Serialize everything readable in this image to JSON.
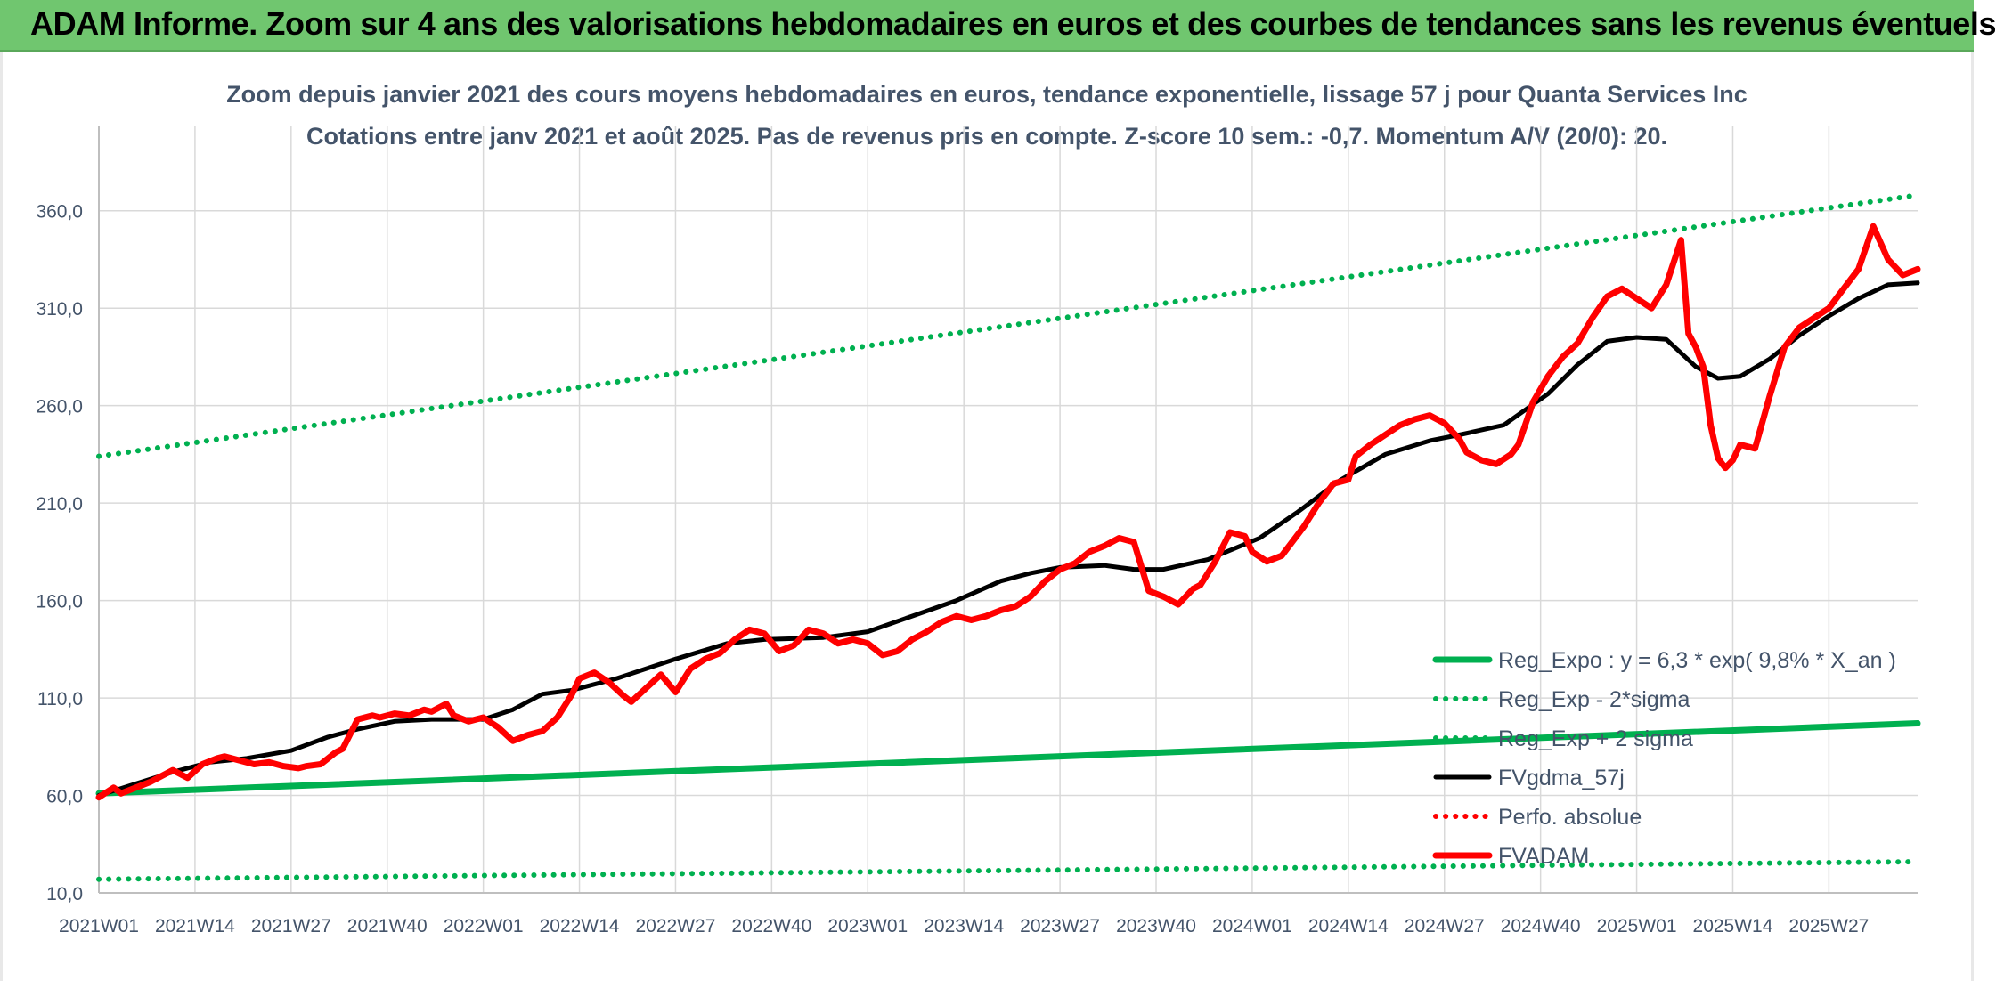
{
  "header": {
    "title": "ADAM Informe. Zoom sur 4 ans des valorisations hebdomadaires en euros et des courbes de tendances sans les revenus éventuels"
  },
  "chart_data": {
    "type": "line",
    "title_line1": "Zoom depuis janvier 2021 des cours moyens hebdomadaires en euros, tendance exponentielle, lissage 57 j pour Quanta Services Inc",
    "title_line2": "Cotations entre janv 2021 et août 2025. Pas de revenus pris en compte. Z-score 10 sem.: -0,7. Momentum A/V (20/0): 20.",
    "x_tick_labels": [
      "2021W01",
      "2021W14",
      "2021W27",
      "2021W40",
      "2022W01",
      "2022W14",
      "2022W27",
      "2022W40",
      "2023W01",
      "2023W14",
      "2023W27",
      "2023W40",
      "2024W01",
      "2024W14",
      "2024W27",
      "2024W40",
      "2025W01",
      "2025W14",
      "2025W27"
    ],
    "y_ticks": [
      10,
      60,
      110,
      160,
      210,
      260,
      310,
      360
    ],
    "y_tick_labels": [
      "10,0",
      "60,0",
      "110,0",
      "160,0",
      "210,0",
      "260,0",
      "310,0",
      "360,0"
    ],
    "ylim": [
      10,
      385
    ],
    "xlim_weeks": [
      0,
      246
    ],
    "grid": true,
    "legend_position": "bottom-right",
    "colors": {
      "green": "#00b050",
      "black": "#000000",
      "red": "#ff0000",
      "grid": "#d9d9d9",
      "tick_text": "#44546a"
    },
    "series": [
      {
        "name": "Reg_Expo : y = 6,3 * exp( 9,8% *  X_an )",
        "style": "solid",
        "color": "#00b050",
        "x": [
          0,
          246
        ],
        "y": [
          61,
          97
        ]
      },
      {
        "name": "Reg_Exp - 2*sigma",
        "style": "dotted",
        "color": "#00b050",
        "x": [
          0,
          246
        ],
        "y": [
          17,
          26
        ]
      },
      {
        "name": "Reg_Exp + 2 sigma",
        "style": "dotted",
        "color": "#00b050",
        "x": [
          0,
          246
        ],
        "y": [
          234,
          368
        ]
      },
      {
        "name": "FVgdma_57j",
        "style": "solid",
        "color": "#000000",
        "x": [
          0,
          5,
          10,
          15,
          20,
          26,
          31,
          35,
          40,
          45,
          52,
          56,
          60,
          64,
          70,
          78,
          85,
          90,
          98,
          104,
          110,
          116,
          122,
          126,
          130,
          136,
          140,
          144,
          150,
          157,
          162,
          168,
          174,
          180,
          184,
          190,
          196,
          200,
          204,
          208,
          212,
          216,
          219,
          222,
          226,
          230,
          234,
          238,
          242,
          246
        ],
        "y": [
          60,
          66,
          72,
          77,
          79,
          83,
          90,
          94,
          98,
          99,
          99,
          104,
          112,
          114,
          120,
          130,
          138,
          140,
          141,
          144,
          152,
          160,
          170,
          174,
          177,
          178,
          176,
          176,
          181,
          192,
          205,
          222,
          235,
          242,
          245,
          250,
          266,
          281,
          293,
          295,
          294,
          280,
          274,
          275,
          284,
          296,
          306,
          315,
          322,
          323
        ]
      },
      {
        "name": "Perfo. absolue",
        "style": "dotted",
        "color": "#ff0000",
        "x": [],
        "y": []
      },
      {
        "name": "FVADAM",
        "style": "solid",
        "color": "#ff0000",
        "x": [
          0,
          2,
          3,
          5,
          7,
          10,
          12,
          14,
          16,
          17,
          19,
          21,
          23,
          25,
          27,
          28,
          30,
          32,
          33,
          35,
          37,
          38,
          40,
          42,
          44,
          45,
          47,
          48,
          50,
          52,
          54,
          56,
          58,
          60,
          62,
          64,
          65,
          67,
          69,
          71,
          72,
          74,
          76,
          78,
          80,
          82,
          84,
          86,
          88,
          90,
          92,
          94,
          96,
          98,
          100,
          102,
          104,
          106,
          108,
          110,
          111,
          112,
          114,
          116,
          118,
          120,
          122,
          124,
          126,
          128,
          130,
          132,
          134,
          136,
          138,
          140,
          142,
          144,
          146,
          148,
          149,
          151,
          153,
          155,
          156,
          158,
          160,
          162,
          163,
          165,
          167,
          169,
          170,
          172,
          174,
          176,
          178,
          180,
          182,
          184,
          185,
          187,
          189,
          191,
          192,
          194,
          196,
          198,
          200,
          202,
          204,
          206,
          208,
          210,
          212,
          214,
          215,
          216,
          217,
          218,
          219,
          220,
          221,
          222,
          224,
          226,
          228,
          230,
          232,
          234,
          236,
          238,
          240,
          242,
          244,
          246
        ],
        "y": [
          59,
          64,
          61,
          64,
          67,
          73,
          69,
          76,
          79,
          80,
          78,
          76,
          77,
          75,
          74,
          75,
          76,
          82,
          84,
          99,
          101,
          100,
          102,
          101,
          104,
          103,
          107,
          101,
          98,
          100,
          95,
          88,
          91,
          93,
          100,
          112,
          120,
          123,
          118,
          111,
          108,
          115,
          122,
          113,
          125,
          130,
          133,
          140,
          145,
          143,
          134,
          137,
          145,
          143,
          138,
          140,
          138,
          132,
          134,
          140,
          142,
          144,
          149,
          152,
          150,
          152,
          155,
          157,
          162,
          170,
          176,
          179,
          185,
          188,
          192,
          190,
          165,
          162,
          158,
          166,
          168,
          180,
          195,
          193,
          185,
          180,
          183,
          193,
          198,
          210,
          220,
          222,
          234,
          240,
          245,
          250,
          253,
          255,
          251,
          243,
          236,
          232,
          230,
          235,
          240,
          262,
          275,
          285,
          292,
          305,
          316,
          320,
          315,
          310,
          322,
          345,
          297,
          290,
          280,
          250,
          233,
          228,
          232,
          240,
          238,
          265,
          290,
          300,
          305,
          310,
          320,
          330,
          352,
          335,
          327,
          330
        ]
      }
    ]
  }
}
